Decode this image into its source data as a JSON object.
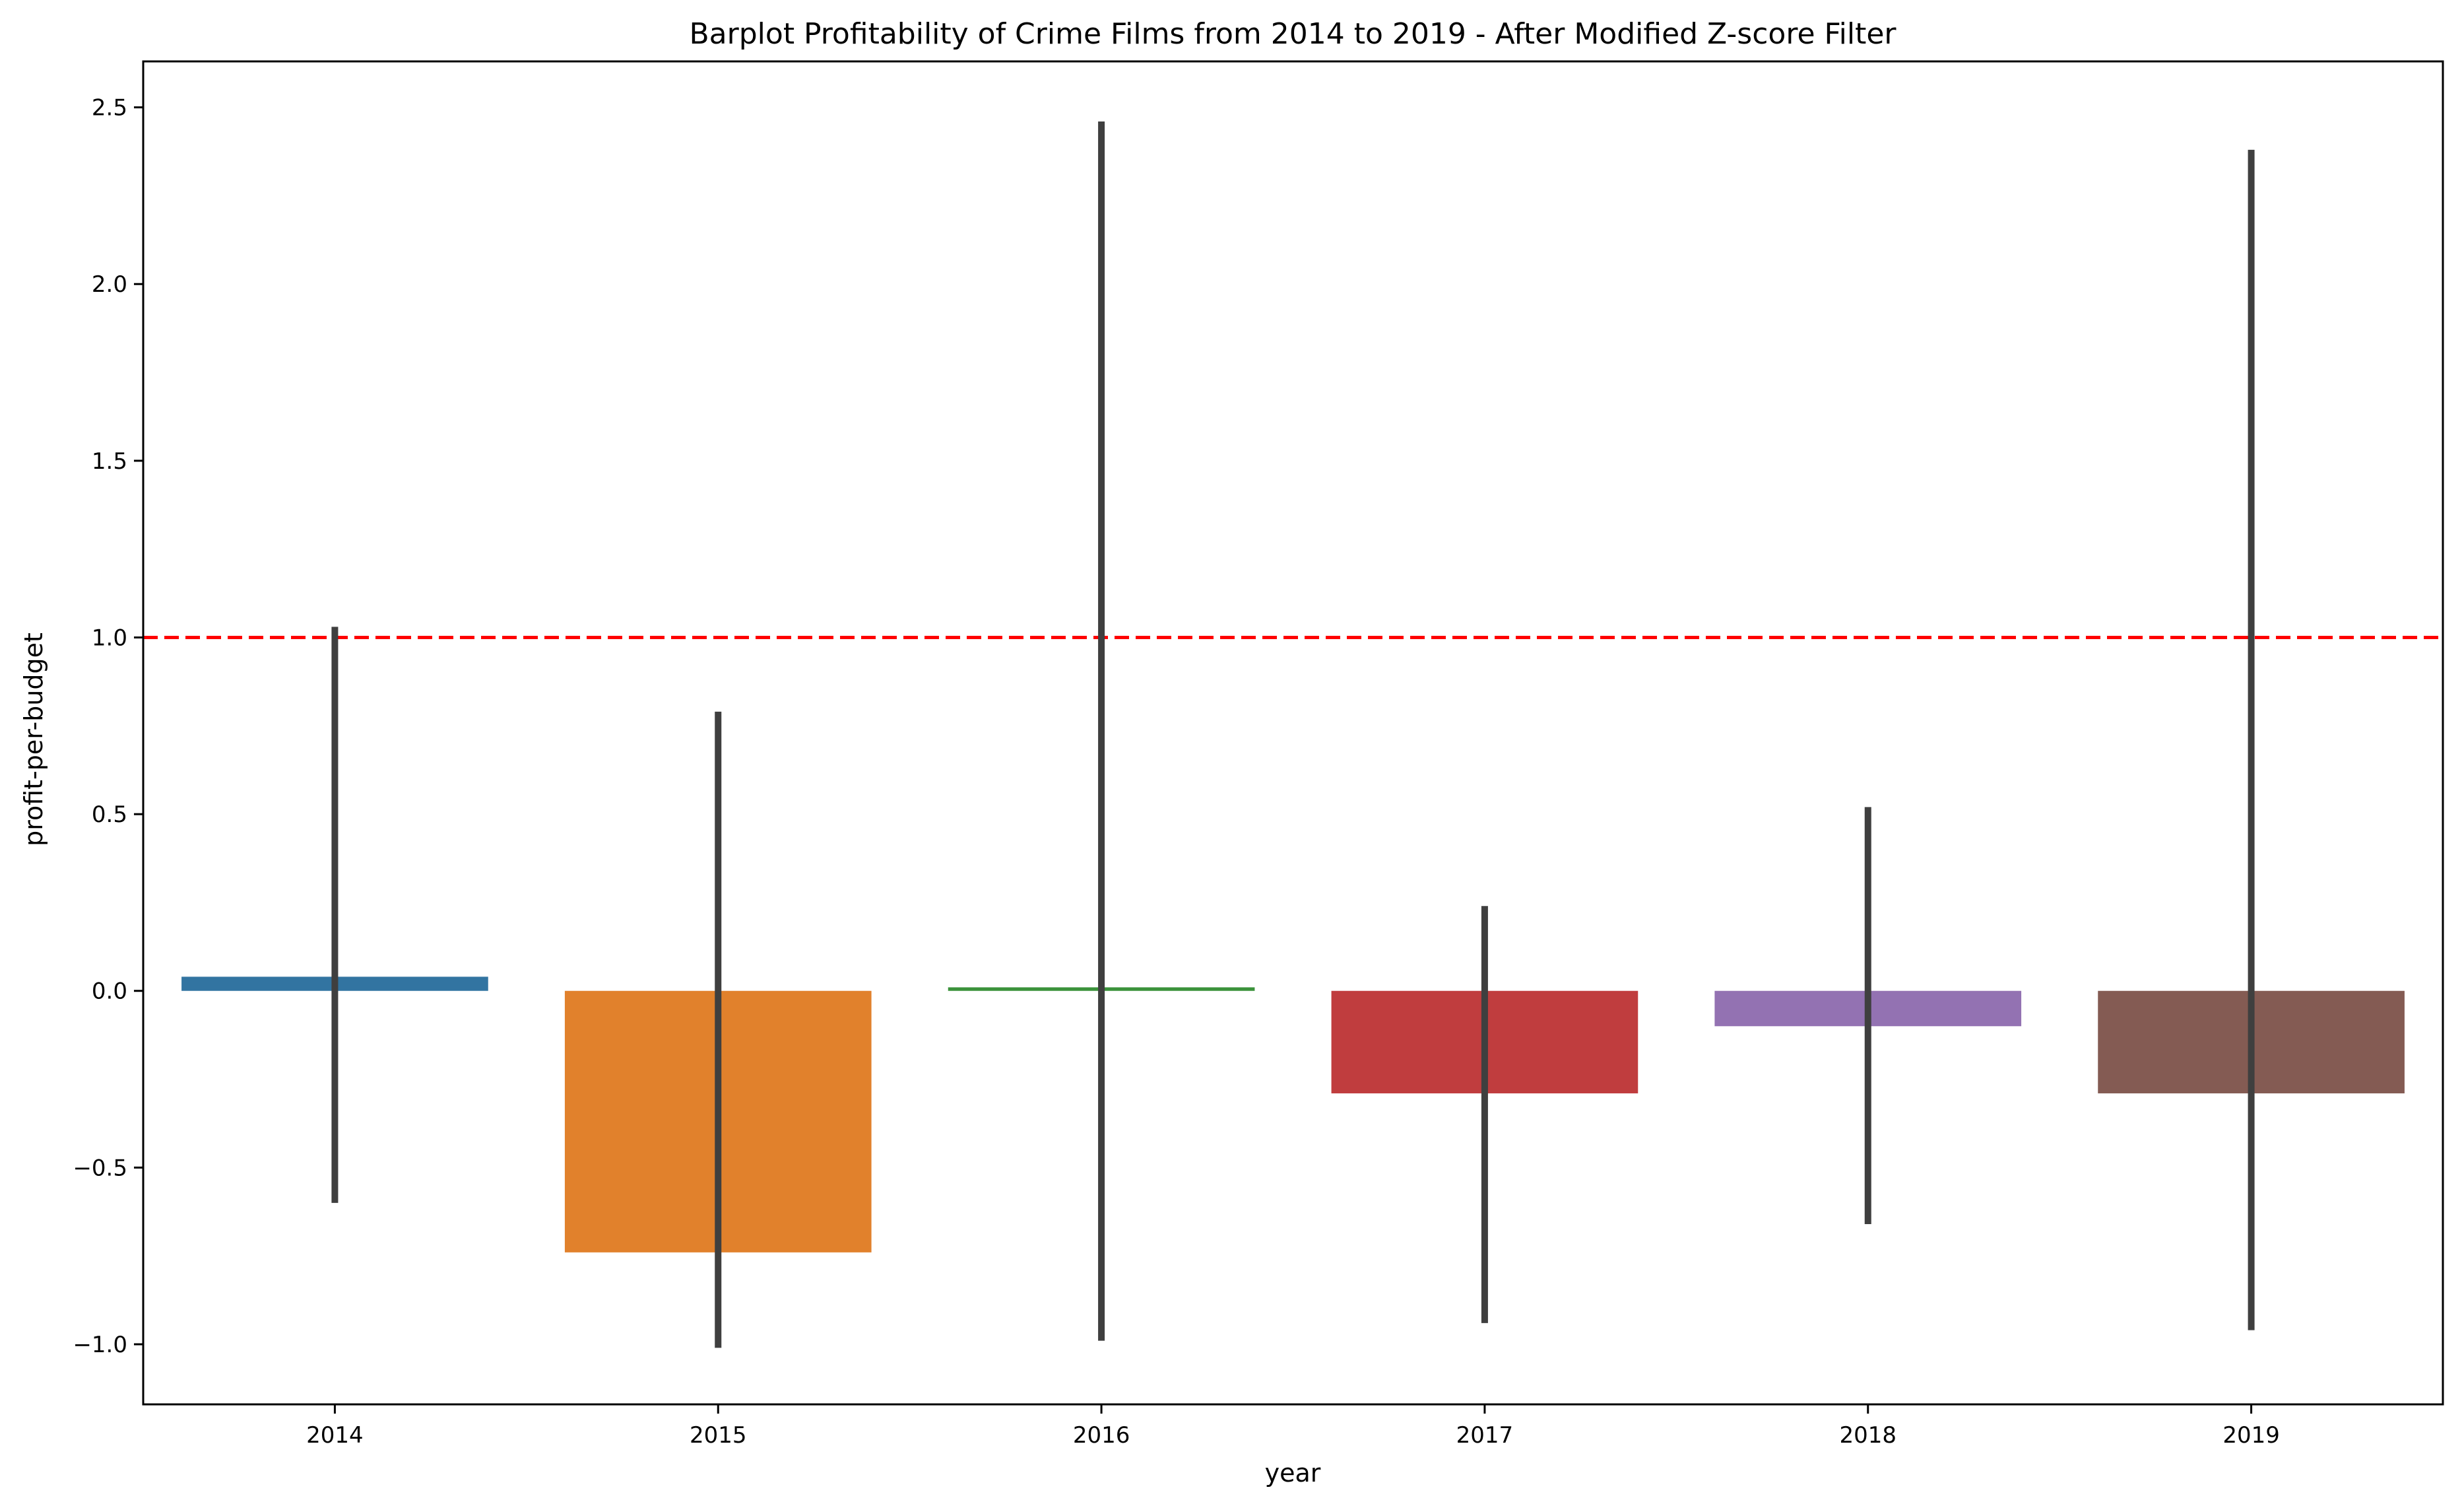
{
  "chart_data": {
    "type": "bar",
    "title": "Barplot Profitability of Crime Films from 2014 to 2019 - After Modified Z-score Filter",
    "xlabel": "year",
    "ylabel": "profit-per-budget",
    "ylim": [
      -1.17,
      2.63
    ],
    "yticks": [
      -1.0,
      -0.5,
      0.0,
      0.5,
      1.0,
      1.5,
      2.0,
      2.5
    ],
    "ytick_labels": [
      "−1.0",
      "−0.5",
      "0.0",
      "0.5",
      "1.0",
      "1.5",
      "2.0",
      "2.5"
    ],
    "categories": [
      "2014",
      "2015",
      "2016",
      "2017",
      "2018",
      "2019"
    ],
    "values": [
      0.04,
      -0.74,
      0.01,
      -0.29,
      -0.1,
      -0.29
    ],
    "error_low": [
      -0.6,
      -1.01,
      -0.99,
      -0.94,
      -0.66,
      -0.96
    ],
    "error_high": [
      1.03,
      0.79,
      2.46,
      0.24,
      0.52,
      2.38
    ],
    "colors": [
      "#3274a1",
      "#e1812c",
      "#3a923a",
      "#c03d3e",
      "#9372b2",
      "#845b53"
    ],
    "error_color": "#3f3f3f",
    "reference_line": {
      "y": 1.0,
      "color": "#ff0000",
      "style": "dashed"
    },
    "grid": false,
    "legend": "none"
  }
}
